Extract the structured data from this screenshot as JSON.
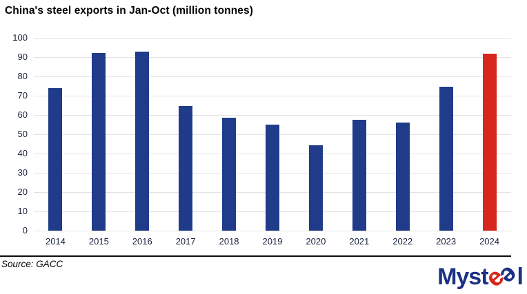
{
  "title": "China's steel exports in Jan-Oct (million tonnes)",
  "source_note": "Source: GACC",
  "logo": {
    "text_left": "Myst",
    "text_right": "l",
    "coil_icon": "double-e-steel-coil-icon",
    "blue": "#1b3184",
    "red": "#d7261d"
  },
  "chart_data": {
    "type": "bar",
    "title": "China's steel exports in Jan-Oct (million tonnes)",
    "categories": [
      "2014",
      "2015",
      "2016",
      "2017",
      "2018",
      "2019",
      "2020",
      "2021",
      "2022",
      "2023",
      "2024"
    ],
    "values": [
      73.9,
      92.1,
      92.7,
      64.5,
      58.4,
      55.1,
      44.4,
      57.5,
      56.0,
      74.7,
      91.9
    ],
    "xlabel": "",
    "ylabel": "",
    "ylim": [
      0,
      100
    ],
    "ytick_step": 10,
    "grid": "horizontal",
    "legend": "none",
    "bar_color": "#1f3b8a",
    "highlight_index": 10,
    "highlight_color": "#d7261d",
    "gridline_color": "#e3e3e3",
    "tick_label_color": "#16213c"
  }
}
